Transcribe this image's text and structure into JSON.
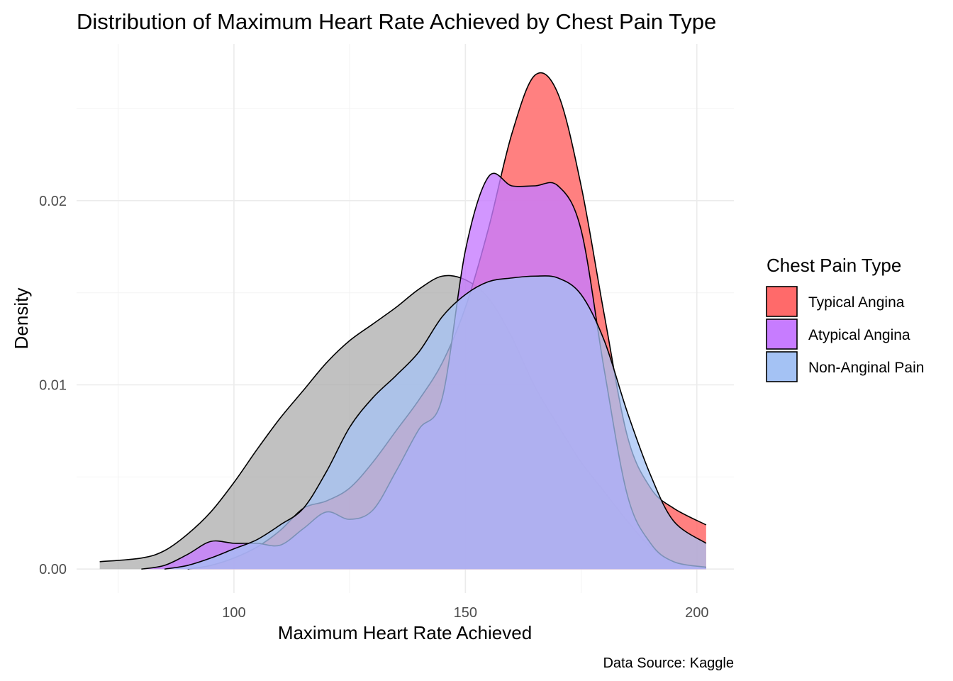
{
  "chart_data": {
    "type": "area",
    "subtype": "density",
    "title": "Distribution of Maximum Heart Rate Achieved by Chest Pain Type",
    "xlabel": "Maximum Heart Rate Achieved",
    "ylabel": "Density",
    "caption": "Data Source: Kaggle",
    "xlim": [
      66,
      208
    ],
    "ylim": [
      -0.0013,
      0.0285
    ],
    "x_ticks": [
      100,
      150,
      200
    ],
    "x_tick_labels": [
      "100",
      "150",
      "200"
    ],
    "y_ticks": [
      0.0,
      0.01,
      0.02
    ],
    "y_tick_labels": [
      "0.00",
      "0.01",
      "0.02"
    ],
    "grid": true,
    "legend": {
      "title": "Chest Pain Type",
      "position": "right",
      "entries": [
        {
          "label": "Typical Angina",
          "color": "#FF6A6A"
        },
        {
          "label": "Atypical Angina",
          "color": "#C77CFF"
        },
        {
          "label": "Non-Anginal Pain",
          "color": "#A4C2F4"
        }
      ]
    },
    "series": [
      {
        "color": "#A6A6A6",
        "alpha": 0.7,
        "x": [
          71,
          80,
          85,
          90,
          95,
          100,
          105,
          110,
          115,
          120,
          125,
          130,
          135,
          140,
          145,
          150,
          155,
          160,
          165,
          170,
          175,
          180,
          185,
          190,
          195,
          202
        ],
        "y": [
          0.0004,
          0.0006,
          0.001,
          0.0019,
          0.0031,
          0.0047,
          0.0065,
          0.0082,
          0.0097,
          0.0112,
          0.0124,
          0.0133,
          0.0142,
          0.0152,
          0.0159,
          0.0157,
          0.0147,
          0.0126,
          0.0099,
          0.0078,
          0.0058,
          0.0042,
          0.0026,
          0.0012,
          0.0004,
          0.0001
        ]
      },
      {
        "name": "Typical Angina",
        "color": "#FF6A6A",
        "alpha": 0.85,
        "x": [
          90,
          95,
          100,
          105,
          110,
          115,
          120,
          125,
          130,
          135,
          140,
          145,
          150,
          155,
          160,
          165,
          170,
          175,
          180,
          185,
          190,
          195,
          202
        ],
        "y": [
          0.0,
          0.0002,
          0.0006,
          0.0012,
          0.0021,
          0.0033,
          0.0037,
          0.0044,
          0.0058,
          0.0075,
          0.0092,
          0.0112,
          0.0142,
          0.0185,
          0.0236,
          0.0268,
          0.0258,
          0.0208,
          0.0138,
          0.0072,
          0.0044,
          0.0033,
          0.0024
        ]
      },
      {
        "name": "Atypical Angina",
        "color": "#C77CFF",
        "alpha": 0.8,
        "x": [
          80,
          85,
          90,
          95,
          100,
          105,
          110,
          115,
          120,
          125,
          130,
          135,
          140,
          145,
          150,
          155,
          160,
          165,
          170,
          175,
          180,
          185,
          190,
          195,
          202
        ],
        "y": [
          0.0,
          0.0002,
          0.0008,
          0.0015,
          0.0014,
          0.0014,
          0.0013,
          0.0022,
          0.0031,
          0.0027,
          0.0032,
          0.0053,
          0.0076,
          0.0093,
          0.0173,
          0.0213,
          0.0208,
          0.0208,
          0.0208,
          0.0184,
          0.0108,
          0.004,
          0.0014,
          0.0004,
          0.0001
        ]
      },
      {
        "name": "Non-Anginal Pain",
        "color": "#A4C2F4",
        "alpha": 0.75,
        "x": [
          85,
          90,
          95,
          100,
          105,
          110,
          115,
          120,
          125,
          130,
          135,
          140,
          145,
          150,
          155,
          160,
          165,
          170,
          175,
          180,
          185,
          190,
          195,
          202
        ],
        "y": [
          0.0,
          0.0002,
          0.0006,
          0.0011,
          0.0016,
          0.0024,
          0.0033,
          0.0053,
          0.0077,
          0.0093,
          0.0105,
          0.0118,
          0.0137,
          0.0149,
          0.0156,
          0.0158,
          0.0159,
          0.0158,
          0.0149,
          0.0124,
          0.0085,
          0.0051,
          0.0026,
          0.0014
        ]
      }
    ]
  }
}
